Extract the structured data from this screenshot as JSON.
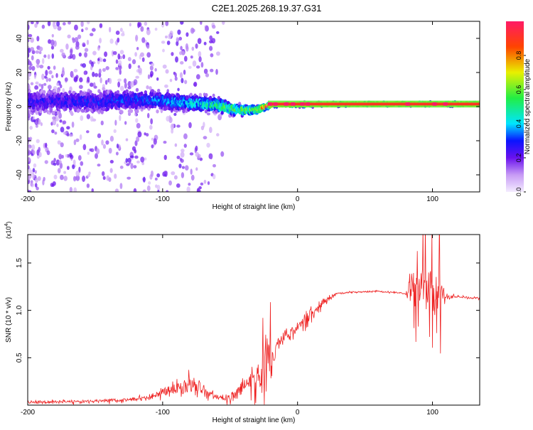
{
  "figure": {
    "title": "C2E1.2025.268.19.37.G31"
  },
  "chart_data": [
    {
      "type": "heatmap",
      "name": "spectrogram",
      "xlabel": "Height of straight line (km)",
      "ylabel": "Frequency (Hz)",
      "xlim": [
        -200,
        135
      ],
      "ylim": [
        -50,
        50
      ],
      "xticks": [
        -200,
        -100,
        0,
        100
      ],
      "yticks": [
        -40,
        -20,
        0,
        20,
        40
      ],
      "colorbar": {
        "label": "Normalized spectral amplitude",
        "range": [
          0,
          1
        ],
        "ticks": [
          0.0,
          0.2,
          0.4,
          0.6,
          0.8
        ],
        "tick_labels": [
          "0.0",
          "0.2",
          "0.4",
          "0.6",
          "0.8"
        ],
        "stops": [
          {
            "v": 0.0,
            "c": "#f4ecff"
          },
          {
            "v": 0.1,
            "c": "#c79bf5"
          },
          {
            "v": 0.2,
            "c": "#6a11ee"
          },
          {
            "v": 0.3,
            "c": "#0a14ff"
          },
          {
            "v": 0.4,
            "c": "#00e5ff"
          },
          {
            "v": 0.55,
            "c": "#22ee44"
          },
          {
            "v": 0.7,
            "c": "#e8f000"
          },
          {
            "v": 0.85,
            "c": "#ff4400"
          },
          {
            "v": 1.0,
            "c": "#ff1a66"
          }
        ]
      },
      "ridge": {
        "description_points_x": [
          -200,
          -150,
          -110,
          -80,
          -60,
          -45,
          -30,
          -20,
          0,
          40,
          80,
          100,
          135
        ],
        "center_freq": [
          3,
          3,
          4,
          2,
          1,
          -2,
          -2,
          1,
          1,
          1.5,
          1.5,
          1.5,
          1.5
        ],
        "half_width": [
          8,
          8,
          7,
          6,
          5,
          4,
          3,
          1.5,
          1.5,
          1.5,
          1.5,
          1.5,
          1.5
        ],
        "peak_amplitude": [
          0.25,
          0.28,
          0.32,
          0.4,
          0.5,
          0.55,
          0.6,
          0.95,
          0.85,
          0.75,
          0.9,
          0.85,
          0.85
        ]
      }
    },
    {
      "type": "line",
      "name": "snr",
      "xlabel": "Height of straight line (km)",
      "ylabel": "SNR (10 * v/v)",
      "scale_label": "(x10",
      "scale_exponent": "4",
      "xlim": [
        -200,
        135
      ],
      "ylim": [
        0,
        1.8
      ],
      "xticks": [
        -200,
        -100,
        0,
        100
      ],
      "yticks": [
        0.5,
        1.0,
        1.5
      ],
      "ytick_labels": [
        "0.5",
        "1.0",
        "1.5"
      ],
      "color": "#ee2222",
      "envelope": {
        "x": [
          -200,
          -160,
          -130,
          -110,
          -95,
          -80,
          -70,
          -60,
          -50,
          -40,
          -30,
          -25,
          -21,
          -20,
          -18,
          -15,
          -10,
          0,
          10,
          20,
          30,
          40,
          60,
          80,
          85,
          95,
          105,
          110,
          120,
          135
        ],
        "mean": [
          0.03,
          0.04,
          0.05,
          0.08,
          0.15,
          0.22,
          0.18,
          0.08,
          0.07,
          0.18,
          0.28,
          0.4,
          0.55,
          0.45,
          0.55,
          0.65,
          0.72,
          0.8,
          0.95,
          1.1,
          1.18,
          1.19,
          1.2,
          1.18,
          1.25,
          1.25,
          1.2,
          1.15,
          1.14,
          1.13
        ],
        "spread": [
          0.03,
          0.03,
          0.04,
          0.06,
          0.1,
          0.18,
          0.15,
          0.05,
          0.1,
          0.15,
          0.25,
          0.5,
          0.6,
          0.4,
          0.2,
          0.12,
          0.12,
          0.15,
          0.2,
          0.08,
          0.02,
          0.015,
          0.015,
          0.015,
          0.35,
          0.4,
          0.5,
          0.05,
          0.02,
          0.02
        ]
      }
    }
  ]
}
